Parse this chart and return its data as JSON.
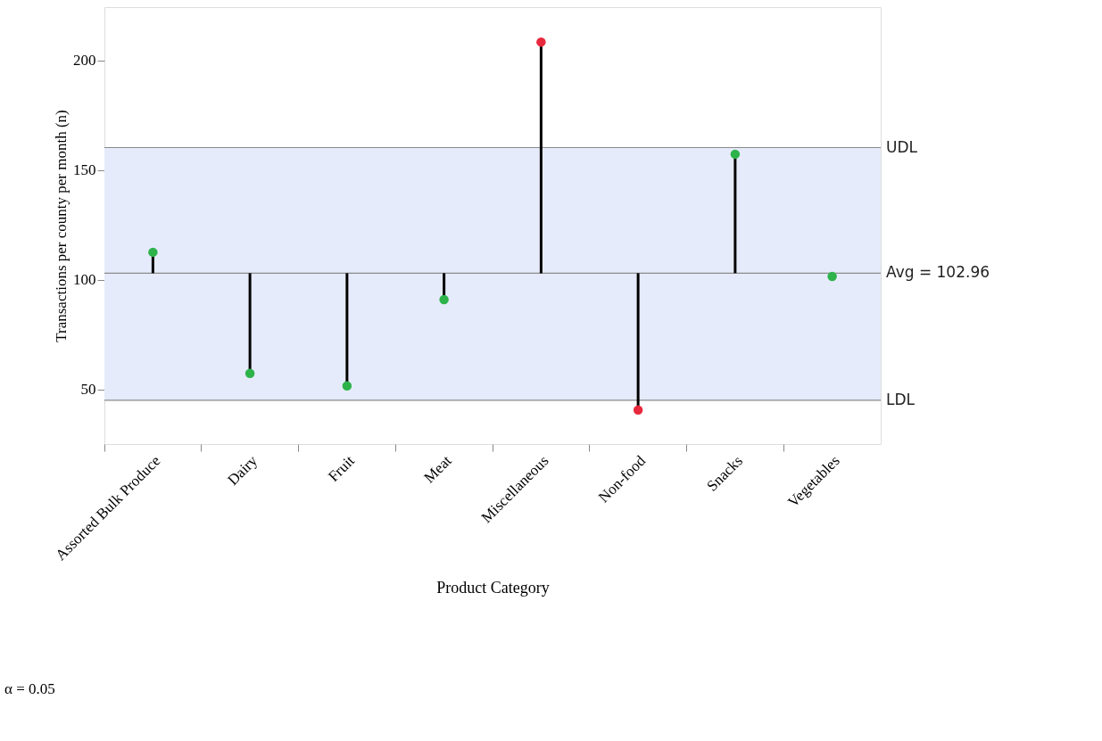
{
  "chart_data": {
    "type": "lollipop",
    "xlabel": "Product Category",
    "ylabel": "Transactions per county per month (n)",
    "categories": [
      "Assorted Bulk Produce",
      "Dairy",
      "Fruit",
      "Meat",
      "Miscellaneous",
      "Non-food",
      "Snacks",
      "Vegetables"
    ],
    "values": [
      112.5,
      57.3,
      51.6,
      90.9,
      208.3,
      40.6,
      157.2,
      101.5
    ],
    "colors": [
      "#2db34a",
      "#2db34a",
      "#2db34a",
      "#2db34a",
      "#e8283c",
      "#e8283c",
      "#2db34a",
      "#2db34a"
    ],
    "errors": [
      [
        102.96,
        112.5
      ],
      [
        57.3,
        102.96
      ],
      [
        51.6,
        102.96
      ],
      [
        90.9,
        102.96
      ],
      [
        102.96,
        208.3
      ],
      [
        40.6,
        102.96
      ],
      [
        102.96,
        157.2
      ],
      null
    ],
    "ylim": [
      25.1,
      224.2
    ],
    "yticks": [
      50,
      100,
      150,
      200
    ],
    "ref_lines": [
      {
        "axis": "y",
        "value": 160.2,
        "label": "UDL",
        "color": "#8a8a8a"
      },
      {
        "axis": "y",
        "value": 102.96,
        "label": "Avg = 102.96",
        "color": "#8a8a8a"
      },
      {
        "axis": "y",
        "value": 45.1,
        "label": "LDL",
        "color": "#8a8a8a"
      }
    ],
    "bands": [
      {
        "axis": "y",
        "from": 45.1,
        "to": 160.2,
        "color": "#e6ebfb"
      }
    ],
    "annotations": [
      "α = 0.05"
    ],
    "marker": "circle",
    "grid": false
  }
}
